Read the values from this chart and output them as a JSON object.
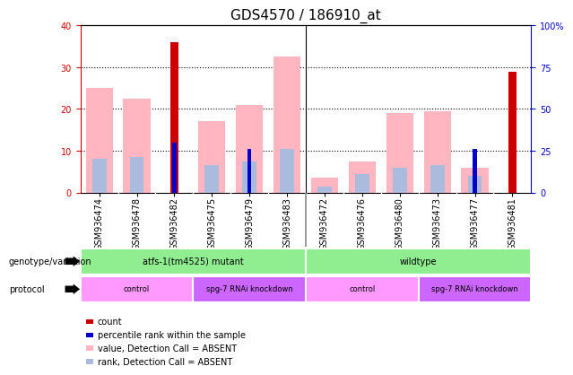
{
  "title": "GDS4570 / 186910_at",
  "samples": [
    "GSM936474",
    "GSM936478",
    "GSM936482",
    "GSM936475",
    "GSM936479",
    "GSM936483",
    "GSM936472",
    "GSM936476",
    "GSM936480",
    "GSM936473",
    "GSM936477",
    "GSM936481"
  ],
  "count_values": [
    0,
    0,
    36,
    0,
    0,
    0,
    0,
    0,
    0,
    0,
    0,
    29
  ],
  "percentile_rank": [
    0,
    0,
    12,
    0,
    10.5,
    0,
    0,
    0,
    0,
    0,
    10.5,
    0
  ],
  "absent_value": [
    25,
    22.5,
    0,
    17,
    21,
    32.5,
    3.5,
    7.5,
    19,
    19.5,
    6,
    0
  ],
  "absent_rank": [
    8,
    8.5,
    0,
    6.5,
    7.5,
    10.5,
    1.5,
    4.5,
    6,
    6.5,
    4,
    0
  ],
  "ylim_left": [
    0,
    40
  ],
  "ylim_right": [
    0,
    100
  ],
  "yticks_left": [
    0,
    10,
    20,
    30,
    40
  ],
  "yticks_right": [
    0,
    25,
    50,
    75,
    100
  ],
  "yticklabels_right": [
    "0",
    "25",
    "50",
    "75",
    "100%"
  ],
  "genotype_groups": [
    {
      "label": "atfs-1(tm4525) mutant",
      "start": 0,
      "end": 6,
      "color": "#90EE90"
    },
    {
      "label": "wildtype",
      "start": 6,
      "end": 12,
      "color": "#90EE90"
    }
  ],
  "protocol_groups": [
    {
      "label": "control",
      "start": 0,
      "end": 3,
      "color": "#FF99FF"
    },
    {
      "label": "spg-7 RNAi knockdown",
      "start": 3,
      "end": 6,
      "color": "#CC66FF"
    },
    {
      "label": "control",
      "start": 6,
      "end": 9,
      "color": "#FF99FF"
    },
    {
      "label": "spg-7 RNAi knockdown",
      "start": 9,
      "end": 12,
      "color": "#CC66FF"
    }
  ],
  "legend_items": [
    {
      "label": "count",
      "color": "#CC0000"
    },
    {
      "label": "percentile rank within the sample",
      "color": "#0000CC"
    },
    {
      "label": "value, Detection Call = ABSENT",
      "color": "#FFB6C1"
    },
    {
      "label": "rank, Detection Call = ABSENT",
      "color": "#AABBDD"
    }
  ],
  "count_color": "#CC0000",
  "rank_color": "#0000CC",
  "absent_value_color": "#FFB6C1",
  "absent_rank_color": "#AABBDD",
  "title_fontsize": 11,
  "tick_fontsize": 7,
  "label_fontsize": 8,
  "left_tick_color": "#CC0000",
  "right_tick_color": "#0000CC",
  "grid_color": "#555555",
  "xticklabel_bg": "#D3D3D3",
  "band_divider_color": "#888888"
}
